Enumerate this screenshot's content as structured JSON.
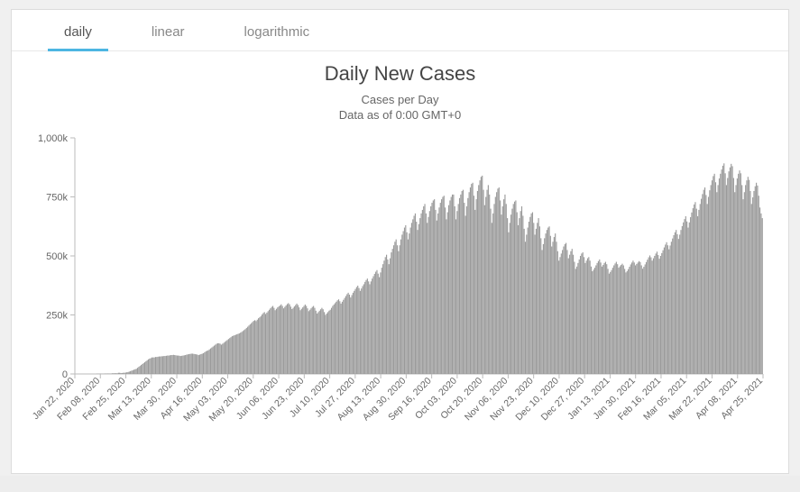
{
  "tabs": [
    {
      "label": "daily",
      "active": true
    },
    {
      "label": "linear",
      "active": false
    },
    {
      "label": "logarithmic",
      "active": false
    }
  ],
  "chart": {
    "type": "bar",
    "title": "Daily New Cases",
    "subtitle1": "Cases per Day",
    "subtitle2": "Data as of 0:00 GMT+0",
    "title_fontsize": 22,
    "subtitle_fontsize": 13,
    "bar_color": "#9a9a9a",
    "axis_color": "#bbbbbb",
    "tick_font_color": "#666666",
    "background_color": "#ffffff",
    "ylim": [
      0,
      1000
    ],
    "yticks": [
      0,
      250,
      500,
      750,
      1000
    ],
    "ytick_labels": [
      "0",
      "250k",
      "500k",
      "750k",
      "1,000k"
    ],
    "x_labels": [
      "Jan 22, 2020",
      "Feb 08, 2020",
      "Feb 25, 2020",
      "Mar 13, 2020",
      "Mar 30, 2020",
      "Apr 16, 2020",
      "May 03, 2020",
      "May 20, 2020",
      "Jun 06, 2020",
      "Jun 23, 2020",
      "Jul 10, 2020",
      "Jul 27, 2020",
      "Aug 13, 2020",
      "Aug 30, 2020",
      "Sep 16, 2020",
      "Oct 03, 2020",
      "Oct 20, 2020",
      "Nov 06, 2020",
      "Nov 23, 2020",
      "Dec 10, 2020",
      "Dec 27, 2020",
      "Jan 13, 2021",
      "Jan 30, 2021",
      "Feb 16, 2021",
      "Mar 05, 2021",
      "Mar 22, 2021",
      "Apr 08, 2021",
      "Apr 25, 2021"
    ],
    "values": [
      0,
      0,
      0,
      0,
      0,
      0,
      0,
      0,
      0,
      0,
      0,
      0,
      0,
      0,
      0,
      0,
      0,
      0,
      1,
      1,
      1,
      1,
      1,
      1,
      1,
      2,
      2,
      2,
      2,
      2,
      2,
      3,
      3,
      3,
      3,
      3,
      5,
      5,
      4,
      4,
      5,
      5,
      6,
      7,
      8,
      10,
      12,
      14,
      16,
      18,
      20,
      22,
      26,
      30,
      34,
      38,
      42,
      46,
      50,
      54,
      58,
      62,
      65,
      67,
      70,
      70,
      70,
      72,
      72,
      73,
      74,
      74,
      75,
      75,
      76,
      76,
      77,
      78,
      78,
      79,
      80,
      80,
      81,
      80,
      79,
      78,
      78,
      77,
      76,
      77,
      78,
      79,
      80,
      82,
      83,
      84,
      85,
      86,
      86,
      85,
      84,
      83,
      82,
      80,
      82,
      84,
      86,
      88,
      92,
      96,
      98,
      100,
      104,
      108,
      112,
      116,
      120,
      124,
      128,
      130,
      130,
      128,
      124,
      128,
      132,
      136,
      140,
      144,
      148,
      152,
      156,
      160,
      162,
      164,
      166,
      168,
      170,
      172,
      175,
      178,
      182,
      186,
      190,
      195,
      200,
      205,
      210,
      215,
      220,
      225,
      228,
      224,
      230,
      236,
      240,
      245,
      252,
      258,
      262,
      254,
      260,
      266,
      272,
      278,
      284,
      288,
      280,
      270,
      276,
      282,
      286,
      290,
      295,
      288,
      278,
      284,
      290,
      296,
      300,
      295,
      285,
      275,
      280,
      286,
      292,
      298,
      292,
      282,
      270,
      276,
      282,
      288,
      294,
      288,
      278,
      266,
      272,
      278,
      284,
      288,
      280,
      268,
      256,
      262,
      268,
      274,
      280,
      274,
      262,
      250,
      256,
      262,
      268,
      272,
      280,
      288,
      294,
      300,
      306,
      312,
      316,
      308,
      298,
      306,
      314,
      322,
      330,
      338,
      344,
      336,
      324,
      334,
      344,
      352,
      360,
      368,
      374,
      364,
      352,
      362,
      372,
      380,
      390,
      398,
      404,
      392,
      380,
      392,
      404,
      414,
      424,
      433,
      440,
      425,
      410,
      430,
      450,
      465,
      480,
      495,
      505,
      485,
      465,
      490,
      515,
      530,
      545,
      560,
      570,
      545,
      520,
      545,
      570,
      590,
      605,
      620,
      630,
      600,
      570,
      595,
      620,
      640,
      655,
      670,
      680,
      645,
      610,
      635,
      660,
      680,
      695,
      710,
      720,
      680,
      640,
      665,
      690,
      710,
      725,
      735,
      740,
      695,
      650,
      680,
      705,
      725,
      740,
      750,
      755,
      705,
      655,
      685,
      715,
      735,
      750,
      760,
      760,
      710,
      655,
      690,
      720,
      745,
      760,
      775,
      780,
      725,
      670,
      710,
      745,
      770,
      790,
      805,
      810,
      755,
      695,
      740,
      775,
      800,
      820,
      835,
      840,
      780,
      715,
      750,
      780,
      800,
      760,
      700,
      640,
      680,
      720,
      750,
      770,
      785,
      790,
      735,
      675,
      710,
      740,
      760,
      720,
      660,
      600,
      640,
      675,
      700,
      720,
      730,
      735,
      685,
      630,
      660,
      690,
      710,
      670,
      615,
      560,
      590,
      620,
      645,
      665,
      680,
      685,
      640,
      590,
      615,
      640,
      660,
      625,
      575,
      525,
      550,
      575,
      595,
      610,
      620,
      625,
      585,
      540,
      560,
      580,
      595,
      560,
      520,
      480,
      495,
      510,
      525,
      540,
      550,
      555,
      525,
      490,
      505,
      520,
      530,
      505,
      475,
      445,
      455,
      470,
      485,
      500,
      510,
      515,
      495,
      470,
      480,
      490,
      495,
      480,
      455,
      435,
      442,
      450,
      460,
      470,
      478,
      485,
      472,
      455,
      462,
      470,
      475,
      465,
      445,
      425,
      432,
      440,
      450,
      460,
      468,
      475,
      465,
      450,
      456,
      462,
      467,
      460,
      445,
      430,
      436,
      444,
      454,
      464,
      472,
      480,
      472,
      460,
      466,
      472,
      478,
      474,
      460,
      446,
      454,
      464,
      474,
      484,
      494,
      502,
      494,
      480,
      490,
      500,
      510,
      518,
      504,
      488,
      500,
      512,
      524,
      536,
      548,
      558,
      545,
      528,
      544,
      560,
      574,
      588,
      600,
      610,
      592,
      572,
      590,
      610,
      626,
      642,
      656,
      668,
      646,
      620,
      642,
      664,
      684,
      702,
      718,
      728,
      700,
      668,
      695,
      720,
      742,
      762,
      780,
      790,
      758,
      720,
      750,
      778,
      800,
      820,
      838,
      848,
      812,
      770,
      800,
      828,
      848,
      866,
      882,
      892,
      850,
      800,
      830,
      858,
      875,
      890,
      880,
      830,
      770,
      800,
      828,
      848,
      862,
      850,
      800,
      740,
      770,
      800,
      820,
      835,
      822,
      775,
      720,
      748,
      775,
      795,
      810,
      798,
      755,
      705,
      680,
      660
    ]
  }
}
